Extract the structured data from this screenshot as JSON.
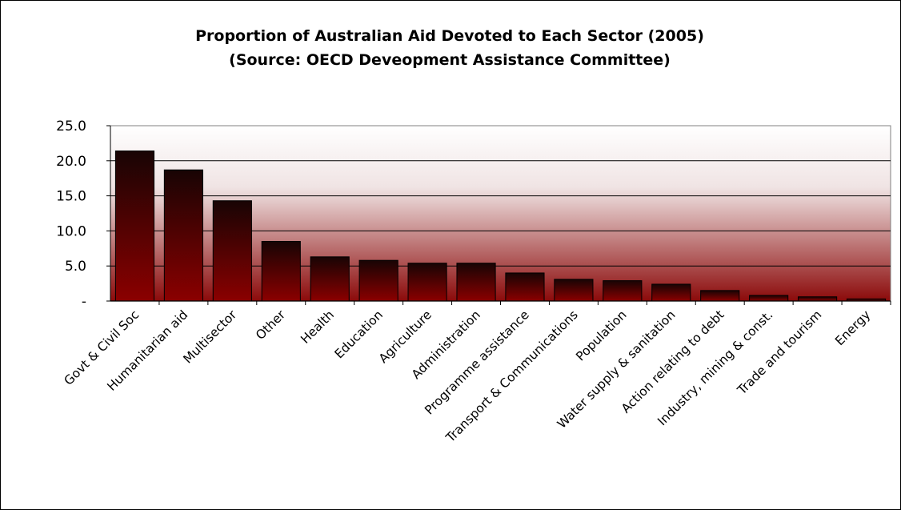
{
  "chart_data": {
    "type": "bar",
    "title": "Proportion of Australian Aid Devoted to Each Sector (2005)",
    "subtitle": "(Source: OECD Deveopment Assistance Committee)",
    "categories": [
      "Govt & Civil Soc",
      "Humanitarian aid",
      "Multisector",
      "Other",
      "Health",
      "Education",
      "Agriculture",
      "Administration",
      "Programme assistance",
      "Transport & Communications",
      "Population",
      "Water supply & sanitation",
      "Action relating to debt",
      "Industry, mining & const.",
      "Trade and tourism",
      "Energy"
    ],
    "values": [
      21.4,
      18.7,
      14.3,
      8.5,
      6.3,
      5.8,
      5.4,
      5.4,
      4.0,
      3.1,
      2.9,
      2.4,
      1.5,
      0.8,
      0.6,
      0.3
    ],
    "ylim": [
      0,
      25
    ],
    "yticks": [
      0,
      5,
      10,
      15,
      20,
      25
    ],
    "ytick_labels": [
      "-",
      "5.0",
      "10.0",
      "15.0",
      "20.0",
      "25.0"
    ],
    "grid": true,
    "legend": "none",
    "colors": {
      "bar_top": "#180404",
      "bar_bottom": "#8b0000",
      "plot_bg_top": "#ffffff",
      "plot_bg_bottom": "#8b0a0a"
    }
  }
}
